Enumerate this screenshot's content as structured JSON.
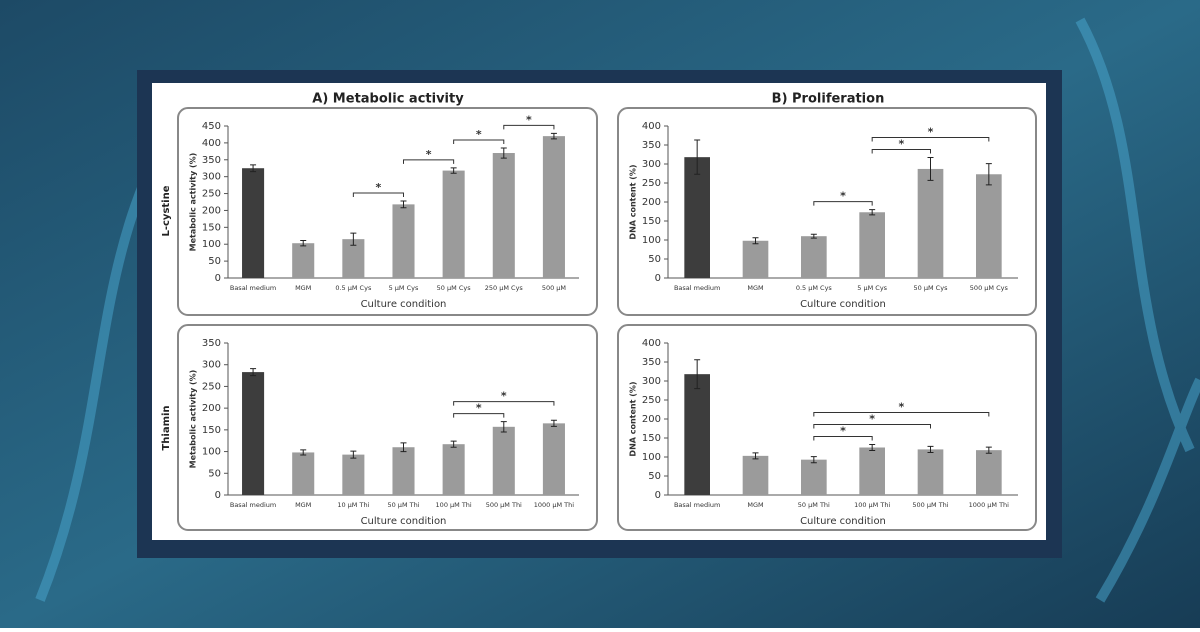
{
  "column_titles": [
    "A) Metabolic activity",
    "B) Proliferation"
  ],
  "row_labels": [
    "L-cystine",
    "Thiamin"
  ],
  "chart_data": [
    {
      "type": "bar",
      "ylabel": "Metabolic activity (%)",
      "xlabel": "Culture condition",
      "categories": [
        "Basal medium",
        "MGM",
        "0.5 μM Cys",
        "5 μM Cys",
        "50 μM Cys",
        "250 μM Cys",
        "500 μM"
      ],
      "values": [
        325,
        103,
        115,
        218,
        318,
        370,
        420
      ],
      "errors": [
        10,
        8,
        18,
        10,
        8,
        15,
        8
      ],
      "colors": [
        "#3d3d3d",
        "#9b9b9b",
        "#9b9b9b",
        "#9b9b9b",
        "#9b9b9b",
        "#9b9b9b",
        "#9b9b9b"
      ],
      "ylim": [
        0,
        450
      ],
      "yticks": [
        0,
        50,
        100,
        150,
        200,
        250,
        300,
        350,
        400,
        450
      ],
      "brackets": [
        {
          "between": [
            "0.5 μM Cys",
            "5 μM Cys"
          ],
          "label": "*"
        },
        {
          "between": [
            "5 μM Cys",
            "50 μM Cys"
          ],
          "label": "*"
        },
        {
          "between": [
            "50 μM Cys",
            "250 μM Cys"
          ],
          "label": "*"
        },
        {
          "between": [
            "250 μM Cys",
            "500 μM"
          ],
          "label": "*"
        }
      ]
    },
    {
      "type": "bar",
      "ylabel": "DNA content (%)",
      "xlabel": "Culture condition",
      "categories": [
        "Basal medium",
        "MGM",
        "0.5 μM Cys",
        "5 μM Cys",
        "50 μM Cys",
        "500 μM Cys"
      ],
      "values": [
        318,
        98,
        110,
        173,
        287,
        273
      ],
      "errors": [
        45,
        8,
        5,
        7,
        30,
        28
      ],
      "colors": [
        "#3d3d3d",
        "#9b9b9b",
        "#9b9b9b",
        "#9b9b9b",
        "#9b9b9b",
        "#9b9b9b"
      ],
      "ylim": [
        0,
        400
      ],
      "yticks": [
        0,
        50,
        100,
        150,
        200,
        250,
        300,
        350,
        400
      ],
      "brackets": [
        {
          "between": [
            "0.5 μM Cys",
            "5 μM Cys"
          ],
          "label": "*"
        },
        {
          "between": [
            "5 μM Cys",
            "50 μM Cys"
          ],
          "label": "*"
        },
        {
          "between": [
            "5 μM Cys",
            "500 μM Cys"
          ],
          "label": "*"
        }
      ]
    },
    {
      "type": "bar",
      "ylabel": "Metabolic activity (%)",
      "xlabel": "Culture condition",
      "categories": [
        "Basal medium",
        "MGM",
        "10 μM Thi",
        "50 μM Thi",
        "100 μM Thi",
        "500 μM Thi",
        "1000 μM Thi"
      ],
      "values": [
        283,
        98,
        93,
        110,
        117,
        157,
        165
      ],
      "errors": [
        8,
        6,
        8,
        10,
        7,
        12,
        7
      ],
      "colors": [
        "#3d3d3d",
        "#9b9b9b",
        "#9b9b9b",
        "#9b9b9b",
        "#9b9b9b",
        "#9b9b9b",
        "#9b9b9b"
      ],
      "ylim": [
        0,
        350
      ],
      "yticks": [
        0,
        50,
        100,
        150,
        200,
        250,
        300,
        350
      ],
      "brackets": [
        {
          "between": [
            "100 μM Thi",
            "500 μM Thi"
          ],
          "label": "*"
        },
        {
          "between": [
            "100 μM Thi",
            "1000 μM Thi"
          ],
          "label": "*"
        }
      ]
    },
    {
      "type": "bar",
      "ylabel": "DNA content (%)",
      "xlabel": "Culture condition",
      "categories": [
        "Basal medium",
        "MGM",
        "50 μM Thi",
        "100 μM Thi",
        "500 μM Thi",
        "1000 μM Thi"
      ],
      "values": [
        318,
        103,
        93,
        125,
        120,
        118
      ],
      "errors": [
        38,
        8,
        8,
        8,
        8,
        8
      ],
      "colors": [
        "#3d3d3d",
        "#9b9b9b",
        "#9b9b9b",
        "#9b9b9b",
        "#9b9b9b",
        "#9b9b9b"
      ],
      "ylim": [
        0,
        400
      ],
      "yticks": [
        0,
        50,
        100,
        150,
        200,
        250,
        300,
        350,
        400
      ],
      "brackets": [
        {
          "between": [
            "50 μM Thi",
            "100 μM Thi"
          ],
          "label": "*"
        },
        {
          "between": [
            "50 μM Thi",
            "500 μM Thi"
          ],
          "label": "*"
        },
        {
          "between": [
            "50 μM Thi",
            "1000 μM Thi"
          ],
          "label": "*"
        }
      ]
    }
  ]
}
